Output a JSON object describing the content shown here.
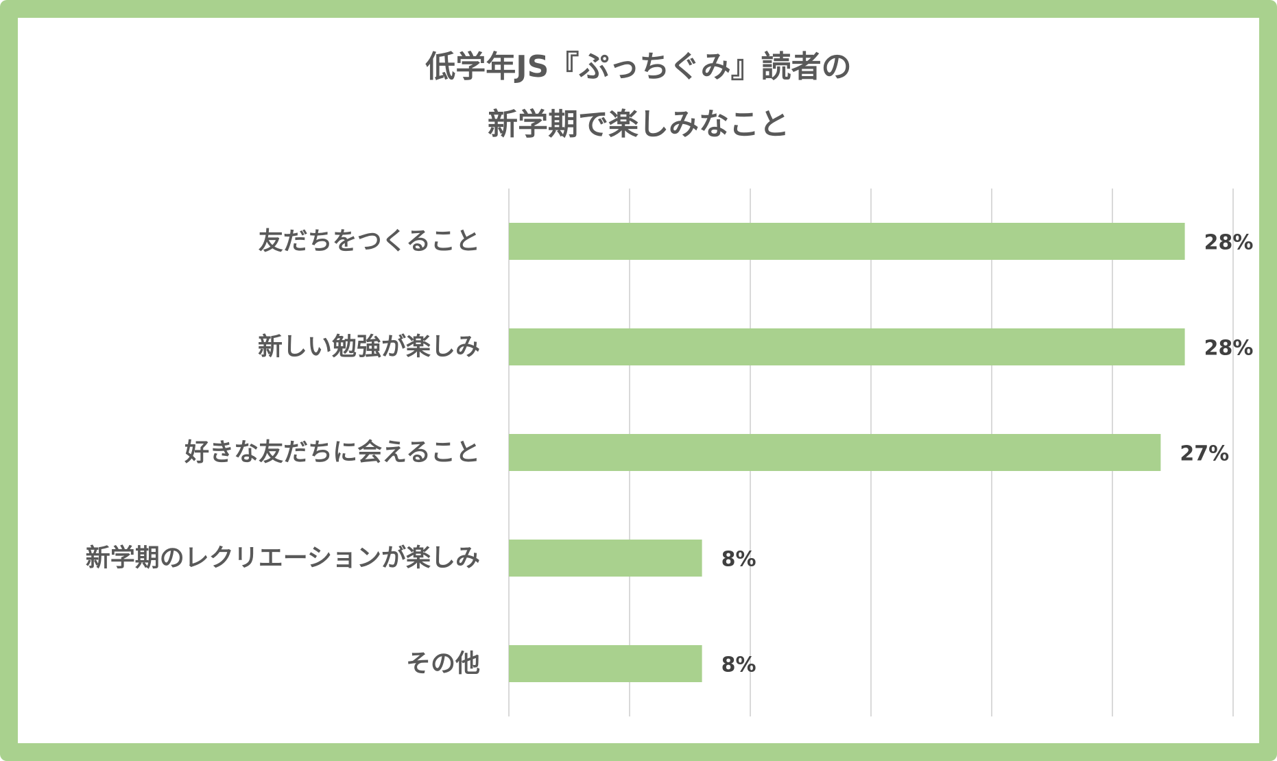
{
  "chart_data": {
    "type": "bar",
    "orientation": "horizontal",
    "title_lines": [
      "低学年JS『ぷっちぐみ』読者の",
      "新学期で楽しみなこと"
    ],
    "categories": [
      "友だちをつくること",
      "新しい勉強が楽しみ",
      "好きな友だちに会えること",
      "新学期のレクリエーションが楽しみ",
      "その他"
    ],
    "values": [
      28,
      28,
      27,
      8,
      8
    ],
    "value_labels": [
      "28%",
      "28%",
      "27%",
      "8%",
      "8%"
    ],
    "xlim": [
      0,
      30
    ],
    "x_gridlines": [
      0,
      5,
      10,
      15,
      20,
      25,
      30
    ],
    "grid": true,
    "bar_color": "#a9d18e",
    "border_color": "#a9d18e",
    "gridline_color": "#d9d9d9"
  }
}
